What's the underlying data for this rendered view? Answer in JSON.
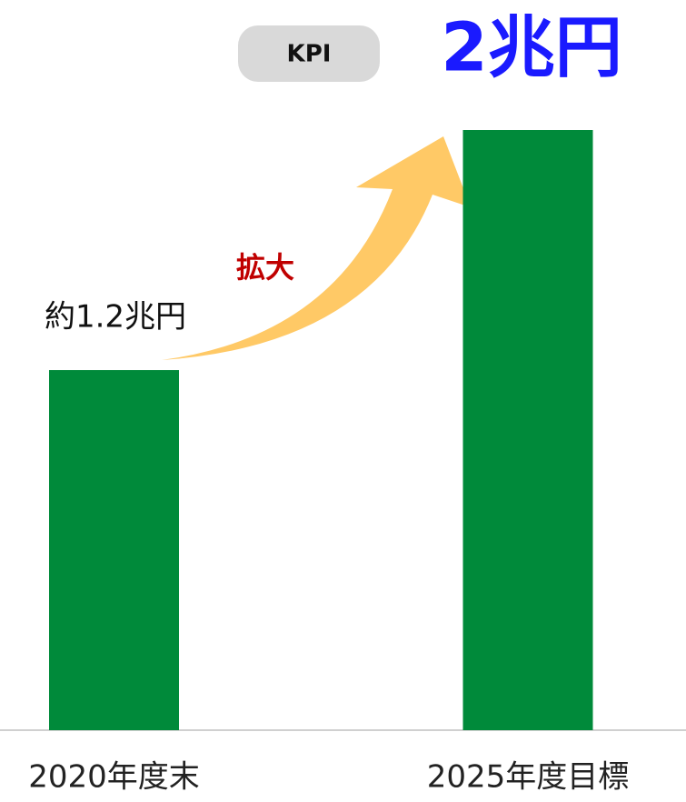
{
  "chart_data": {
    "type": "bar",
    "categories": [
      "2020年度末",
      "2025年度目標"
    ],
    "values": [
      1.2,
      2
    ],
    "value_labels": [
      "約1.2兆円",
      "2兆円"
    ],
    "color": "#008a3a",
    "ylim": [
      0,
      2
    ],
    "annotations": {
      "badge": "KPI",
      "note": "拡大"
    }
  }
}
